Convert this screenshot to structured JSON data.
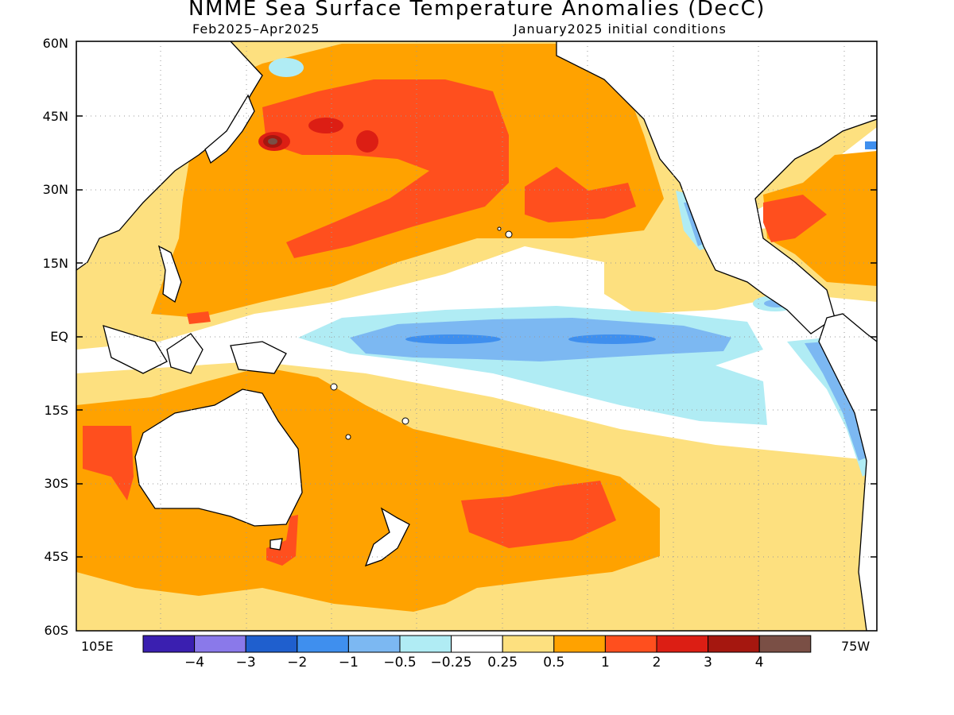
{
  "title": "NMME Sea Surface Temperature Anomalies (DecC)",
  "subtitle_left": "Feb2025–Apr2025",
  "subtitle_right": "January2025 initial conditions",
  "lat_labels": [
    "60N",
    "45N",
    "30N",
    "15N",
    "EQ",
    "15S",
    "30S",
    "45S",
    "60S"
  ],
  "lon_label_left": "105E",
  "lon_label_right": "75W",
  "colorbar": {
    "colors": [
      "#3a1fb0",
      "#8a79ea",
      "#1f5fce",
      "#3f8fee",
      "#7cb8f2",
      "#b0ecf4",
      "#ffffff",
      "#fde07f",
      "#ffa200",
      "#ff4f1e",
      "#dc1e14",
      "#a5170f",
      "#7a4f45"
    ],
    "labels": [
      "−4",
      "−3",
      "−2",
      "−1",
      "−0.5",
      "−0.25",
      "0.25",
      "0.5",
      "1",
      "2",
      "3",
      "4"
    ]
  }
}
